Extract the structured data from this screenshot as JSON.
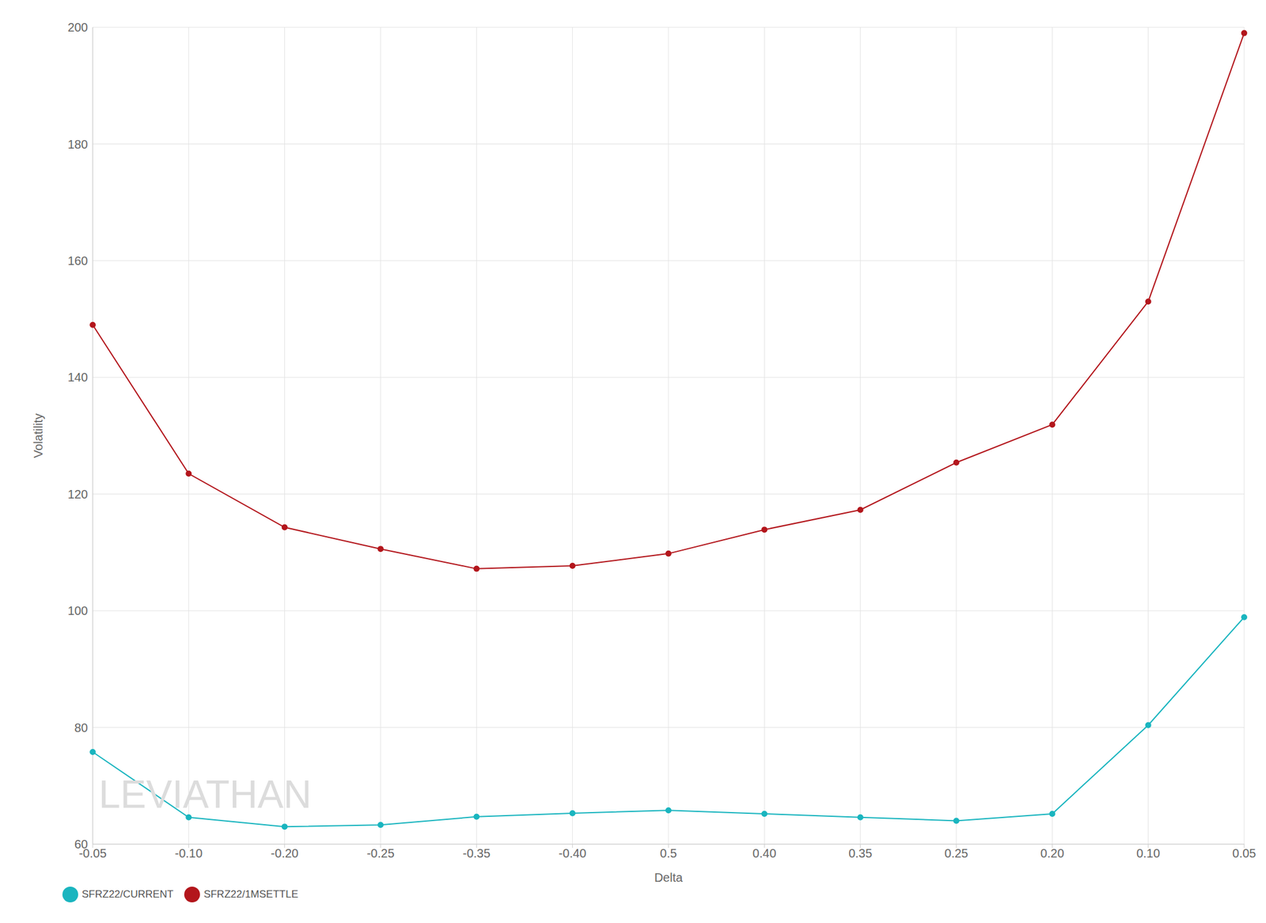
{
  "chart_data": {
    "type": "line",
    "x_label": "Delta",
    "y_label": "Volatility",
    "annotations": [
      "LEVIATHAN"
    ],
    "categories": [
      "-0.05",
      "-0.10",
      "-0.20",
      "-0.25",
      "-0.35",
      "-0.40",
      "0.5",
      "0.40",
      "0.35",
      "0.25",
      "0.20",
      "0.10",
      "0.05"
    ],
    "series": [
      {
        "name": "SFRZ22/CURRENT",
        "color": "#1ab5bf",
        "marker": "circle",
        "values": [
          75.8,
          64.6,
          63.0,
          63.3,
          64.7,
          65.3,
          65.8,
          65.2,
          64.6,
          64.0,
          65.2,
          80.4,
          98.9
        ]
      },
      {
        "name": "SFRZ22/1MSETTLE",
        "color": "#b3161c",
        "marker": "circle",
        "values": [
          149.0,
          123.5,
          114.3,
          110.6,
          107.2,
          107.7,
          109.8,
          113.9,
          117.3,
          125.4,
          131.9,
          153.0,
          199.0
        ]
      }
    ],
    "ylim": [
      60,
      200
    ],
    "yticks": [
      60,
      80,
      100,
      120,
      140,
      160,
      180,
      200
    ],
    "grid": true,
    "legend": "bottom-left"
  }
}
